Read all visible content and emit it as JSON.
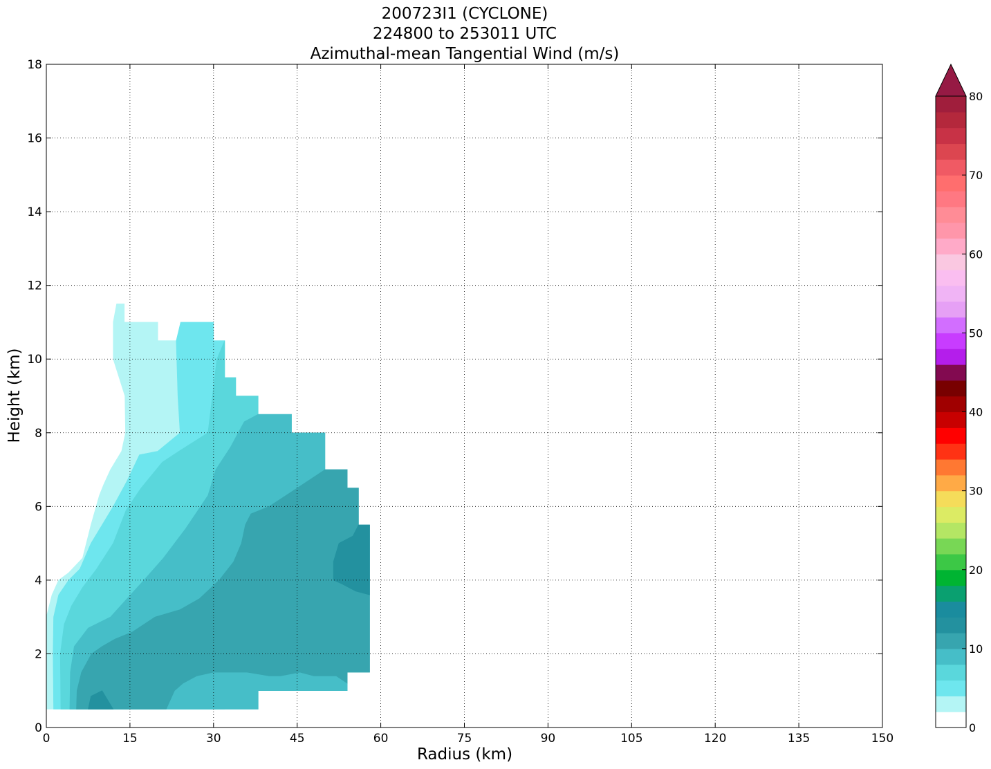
{
  "chart_data": {
    "type": "contourf",
    "title_lines": [
      "200723I1 (CYCLONE)",
      "224800 to 253011 UTC",
      "Azimuthal-mean Tangential Wind (m/s)"
    ],
    "xlabel": "Radius (km)",
    "ylabel": "Height (km)",
    "xlim": [
      0,
      150
    ],
    "ylim": [
      0,
      18
    ],
    "x_ticks": [
      0,
      15,
      30,
      45,
      60,
      75,
      90,
      105,
      120,
      135,
      150
    ],
    "y_ticks": [
      0,
      2,
      4,
      6,
      8,
      10,
      12,
      14,
      16,
      18
    ],
    "grid": true,
    "grid_style": "dotted",
    "colorbar": {
      "min": 0,
      "max": 80,
      "step": 2,
      "extend": "max",
      "ticks": [
        0,
        10,
        20,
        30,
        40,
        50,
        60,
        70,
        80
      ],
      "colors": [
        "#ffffff",
        "#b4f5f5",
        "#6ee6ee",
        "#5ad7dc",
        "#46bec8",
        "#37a5af",
        "#23919f",
        "#1a8c9e",
        "#0aa070",
        "#00b432",
        "#3cc846",
        "#78d755",
        "#b4e664",
        "#dceb64",
        "#f5dc5a",
        "#ffaa46",
        "#ff7832",
        "#ff3214",
        "#ff0000",
        "#c80000",
        "#a00000",
        "#780000",
        "#820a50",
        "#b41eeb",
        "#c83cff",
        "#d26eff",
        "#e6a0f5",
        "#f0b4f5",
        "#fabef0",
        "#fac8e1",
        "#ffaac8",
        "#ff96aa",
        "#ff8c96",
        "#ff7882",
        "#ff6e6e",
        "#f05a64",
        "#dc4650",
        "#c83246",
        "#b4283c",
        "#a01e3c"
      ],
      "extend_color": "#961a44"
    },
    "levels": [
      {
        "value_range": [
          2,
          4
        ],
        "color": "#b4f5f5",
        "polygon": [
          [
            0,
            0.5
          ],
          [
            0,
            3.0
          ],
          [
            1,
            3.6
          ],
          [
            2.2,
            4.0
          ],
          [
            4,
            4.2
          ],
          [
            6.5,
            4.6
          ],
          [
            8,
            5.5
          ],
          [
            9.5,
            6.3
          ],
          [
            10.3,
            6.6
          ],
          [
            11.5,
            7.0
          ],
          [
            13.5,
            7.5
          ],
          [
            14.2,
            8.0
          ],
          [
            14.1,
            9.0
          ],
          [
            12,
            10.0
          ],
          [
            12,
            11.0
          ],
          [
            12.6,
            11.5
          ],
          [
            14,
            11.5
          ],
          [
            14,
            11.0
          ],
          [
            20,
            11.0
          ],
          [
            20,
            10.5
          ],
          [
            25,
            10.5
          ],
          [
            25,
            9.0
          ],
          [
            25,
            7.5
          ],
          [
            25,
            0.5
          ]
        ]
      },
      {
        "value_range": [
          4,
          6
        ],
        "color": "#6ee6ee",
        "polygon": [
          [
            1.3,
            0.5
          ],
          [
            1.2,
            2.0
          ],
          [
            1.3,
            3.0
          ],
          [
            2.2,
            3.6
          ],
          [
            4,
            4.0
          ],
          [
            6,
            4.3
          ],
          [
            8,
            5.0
          ],
          [
            10,
            5.5
          ],
          [
            12,
            6.0
          ],
          [
            14.5,
            6.7
          ],
          [
            16.7,
            7.4
          ],
          [
            20,
            7.5
          ],
          [
            24,
            8.0
          ],
          [
            23.6,
            9.0
          ],
          [
            23.3,
            10.5
          ],
          [
            24.1,
            11.0
          ],
          [
            30,
            11.0
          ],
          [
            30,
            10.5
          ],
          [
            32,
            10.5
          ],
          [
            32,
            0.5
          ]
        ]
      },
      {
        "value_range": [
          6,
          8
        ],
        "color": "#5ad7dc",
        "polygon": [
          [
            2.6,
            0.5
          ],
          [
            2.5,
            2.0
          ],
          [
            3.2,
            2.8
          ],
          [
            4.5,
            3.3
          ],
          [
            6.5,
            3.8
          ],
          [
            9,
            4.3
          ],
          [
            12,
            5.0
          ],
          [
            14.3,
            5.9
          ],
          [
            17,
            6.5
          ],
          [
            20.8,
            7.2
          ],
          [
            23.8,
            7.5
          ],
          [
            29,
            8.0
          ],
          [
            30.6,
            10.0
          ],
          [
            32,
            10.5
          ],
          [
            32,
            9.5
          ],
          [
            34,
            9.5
          ],
          [
            34,
            9.0
          ],
          [
            38,
            9.0
          ],
          [
            38,
            0.5
          ]
        ]
      },
      {
        "value_range": [
          8,
          10
        ],
        "color": "#46bec8",
        "polygon": [
          [
            4.2,
            0.5
          ],
          [
            4.3,
            1.5
          ],
          [
            5,
            2.2
          ],
          [
            7.5,
            2.7
          ],
          [
            11.5,
            3.0
          ],
          [
            14.5,
            3.5
          ],
          [
            17.5,
            4.0
          ],
          [
            21,
            4.6
          ],
          [
            25,
            5.4
          ],
          [
            29,
            6.3
          ],
          [
            30.4,
            7.0
          ],
          [
            33,
            7.6
          ],
          [
            35.5,
            8.3
          ],
          [
            38,
            8.5
          ],
          [
            44,
            8.5
          ],
          [
            44,
            8.0
          ],
          [
            50,
            8.0
          ],
          [
            50,
            7.0
          ],
          [
            54,
            7.0
          ],
          [
            54,
            6.5
          ],
          [
            56,
            6.5
          ],
          [
            56,
            5.5
          ],
          [
            58,
            5.5
          ],
          [
            58,
            1.5
          ],
          [
            54,
            1.5
          ],
          [
            54,
            1.0
          ],
          [
            38,
            1.0
          ],
          [
            38,
            0.5
          ]
        ]
      },
      {
        "value_range": [
          10,
          12
        ],
        "color": "#37a5af",
        "polygon": [
          [
            5.4,
            0.5
          ],
          [
            5.5,
            1.0
          ],
          [
            6.3,
            1.5
          ],
          [
            8.1,
            2.0
          ],
          [
            10,
            2.2
          ],
          [
            12.3,
            2.4
          ],
          [
            15.5,
            2.6
          ],
          [
            19.5,
            3.0
          ],
          [
            24,
            3.2
          ],
          [
            27.5,
            3.5
          ],
          [
            31,
            4.0
          ],
          [
            33.6,
            4.5
          ],
          [
            35,
            5.0
          ],
          [
            35.7,
            5.5
          ],
          [
            36.7,
            5.8
          ],
          [
            40,
            6.0
          ],
          [
            45,
            6.5
          ],
          [
            50,
            7.0
          ],
          [
            54,
            7.0
          ],
          [
            54,
            6.5
          ],
          [
            56,
            6.5
          ],
          [
            56,
            5.5
          ],
          [
            58,
            5.5
          ],
          [
            58,
            1.5
          ],
          [
            54,
            1.5
          ],
          [
            54,
            1.2
          ],
          [
            52,
            1.4
          ],
          [
            50,
            1.4
          ],
          [
            48,
            1.4
          ],
          [
            45.5,
            1.5
          ],
          [
            42,
            1.4
          ],
          [
            40,
            1.4
          ],
          [
            36,
            1.5
          ],
          [
            32,
            1.5
          ],
          [
            30,
            1.5
          ],
          [
            27,
            1.4
          ],
          [
            24.5,
            1.2
          ],
          [
            23,
            1.0
          ],
          [
            21.5,
            0.5
          ]
        ]
      },
      {
        "value_range": [
          12,
          14
        ],
        "color": "#23919f",
        "polygon": [
          [
            7.5,
            0.5
          ],
          [
            8,
            0.85
          ],
          [
            10,
            1.0
          ],
          [
            12,
            0.5
          ]
        ]
      },
      {
        "value_range": [
          12,
          14
        ],
        "color": "#23919f",
        "polygon": [
          [
            58,
            5.5
          ],
          [
            56,
            5.5
          ],
          [
            55,
            5.2
          ],
          [
            52.5,
            5.0
          ],
          [
            51.5,
            4.5
          ],
          [
            51.5,
            4.0
          ],
          [
            53,
            3.9
          ],
          [
            55.5,
            3.7
          ],
          [
            58,
            3.6
          ]
        ]
      }
    ]
  }
}
